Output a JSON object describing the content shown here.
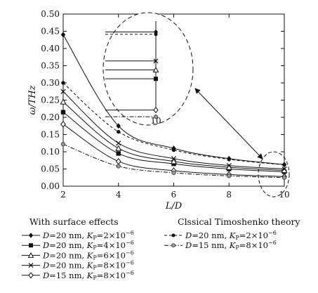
{
  "chart_data": {
    "type": "line",
    "xlabel": "L/D",
    "ylabel": "ω/THz",
    "xlim": [
      2,
      10
    ],
    "ylim": [
      0,
      0.5
    ],
    "x_ticks": [
      "2",
      "4",
      "6",
      "8",
      "10"
    ],
    "y_ticks": [
      "0.00",
      "0.05",
      "0.10",
      "0.15",
      "0.20",
      "0.25",
      "0.30",
      "0.35",
      "0.40",
      "0.45",
      "0.50"
    ],
    "grid": false,
    "x": [
      2,
      4,
      6,
      8,
      10
    ],
    "series": [
      {
        "group": "surface",
        "name": "D=20 nm, KP=2×10⁻⁶",
        "marker": "diamond",
        "dash": "solid",
        "values": [
          0.44,
          0.175,
          0.11,
          0.08,
          0.063
        ]
      },
      {
        "group": "surface",
        "name": "D=20 nm, KP=4×10⁻⁶",
        "marker": "square",
        "dash": "solid",
        "values": [
          0.215,
          0.095,
          0.065,
          0.05,
          0.042
        ]
      },
      {
        "group": "surface",
        "name": "D=20 nm, KP=6×10⁻⁶",
        "marker": "triangle",
        "dash": "solid",
        "values": [
          0.245,
          0.11,
          0.072,
          0.055,
          0.046
        ]
      },
      {
        "group": "surface",
        "name": "D=20 nm, KP=8×10⁻⁶",
        "marker": "x",
        "dash": "solid",
        "values": [
          0.275,
          0.125,
          0.08,
          0.06,
          0.05
        ]
      },
      {
        "group": "surface",
        "name": "D=15 nm, KP=8×10⁻⁶",
        "marker": "open-diamond",
        "dash": "solid",
        "values": [
          0.18,
          0.072,
          0.045,
          0.034,
          0.028
        ]
      },
      {
        "group": "classical",
        "name": "D=20 nm, KP=2×10⁻⁶",
        "marker": "circle",
        "dash": "dashed",
        "values": [
          0.3,
          0.158,
          0.105,
          0.078,
          0.062
        ]
      },
      {
        "group": "classical",
        "name": "D=15 nm, KP=8×10⁻⁶",
        "marker": "gray-circle",
        "dash": "dashdot",
        "values": [
          0.122,
          0.058,
          0.039,
          0.03,
          0.025
        ]
      }
    ],
    "inset": {
      "label": "10",
      "zoom_x": 10
    },
    "legend": {
      "placement": "below",
      "surface_title": "With surface effects",
      "classical_title": "Clssical Timoshenko theory",
      "entries": [
        {
          "d_label": "D",
          "d_value": "=20 nm, ",
          "k_label": "K",
          "k_sub": "P",
          "k_value": "=2×10",
          "k_exp": "−6"
        },
        {
          "d_label": "D",
          "d_value": "=20 nm, ",
          "k_label": "K",
          "k_sub": "P",
          "k_value": "=4×10",
          "k_exp": "−6"
        },
        {
          "d_label": "D",
          "d_value": "=20 nm, ",
          "k_label": "K",
          "k_sub": "P",
          "k_value": "=6×10",
          "k_exp": "−6"
        },
        {
          "d_label": "D",
          "d_value": "=20 nm, ",
          "k_label": "K",
          "k_sub": "P",
          "k_value": "=8×10",
          "k_exp": "−6"
        },
        {
          "d_label": "D",
          "d_value": "=15 nm, ",
          "k_label": "K",
          "k_sub": "P",
          "k_value": "=8×10",
          "k_exp": "−6"
        },
        {
          "d_label": "D",
          "d_value": "=20 nm, ",
          "k_label": "K",
          "k_sub": "P",
          "k_value": "=2×10",
          "k_exp": "−6"
        },
        {
          "d_label": "D",
          "d_value": "=15 nm, ",
          "k_label": "K",
          "k_sub": "P",
          "k_value": "=8×10",
          "k_exp": "−6"
        }
      ]
    }
  }
}
